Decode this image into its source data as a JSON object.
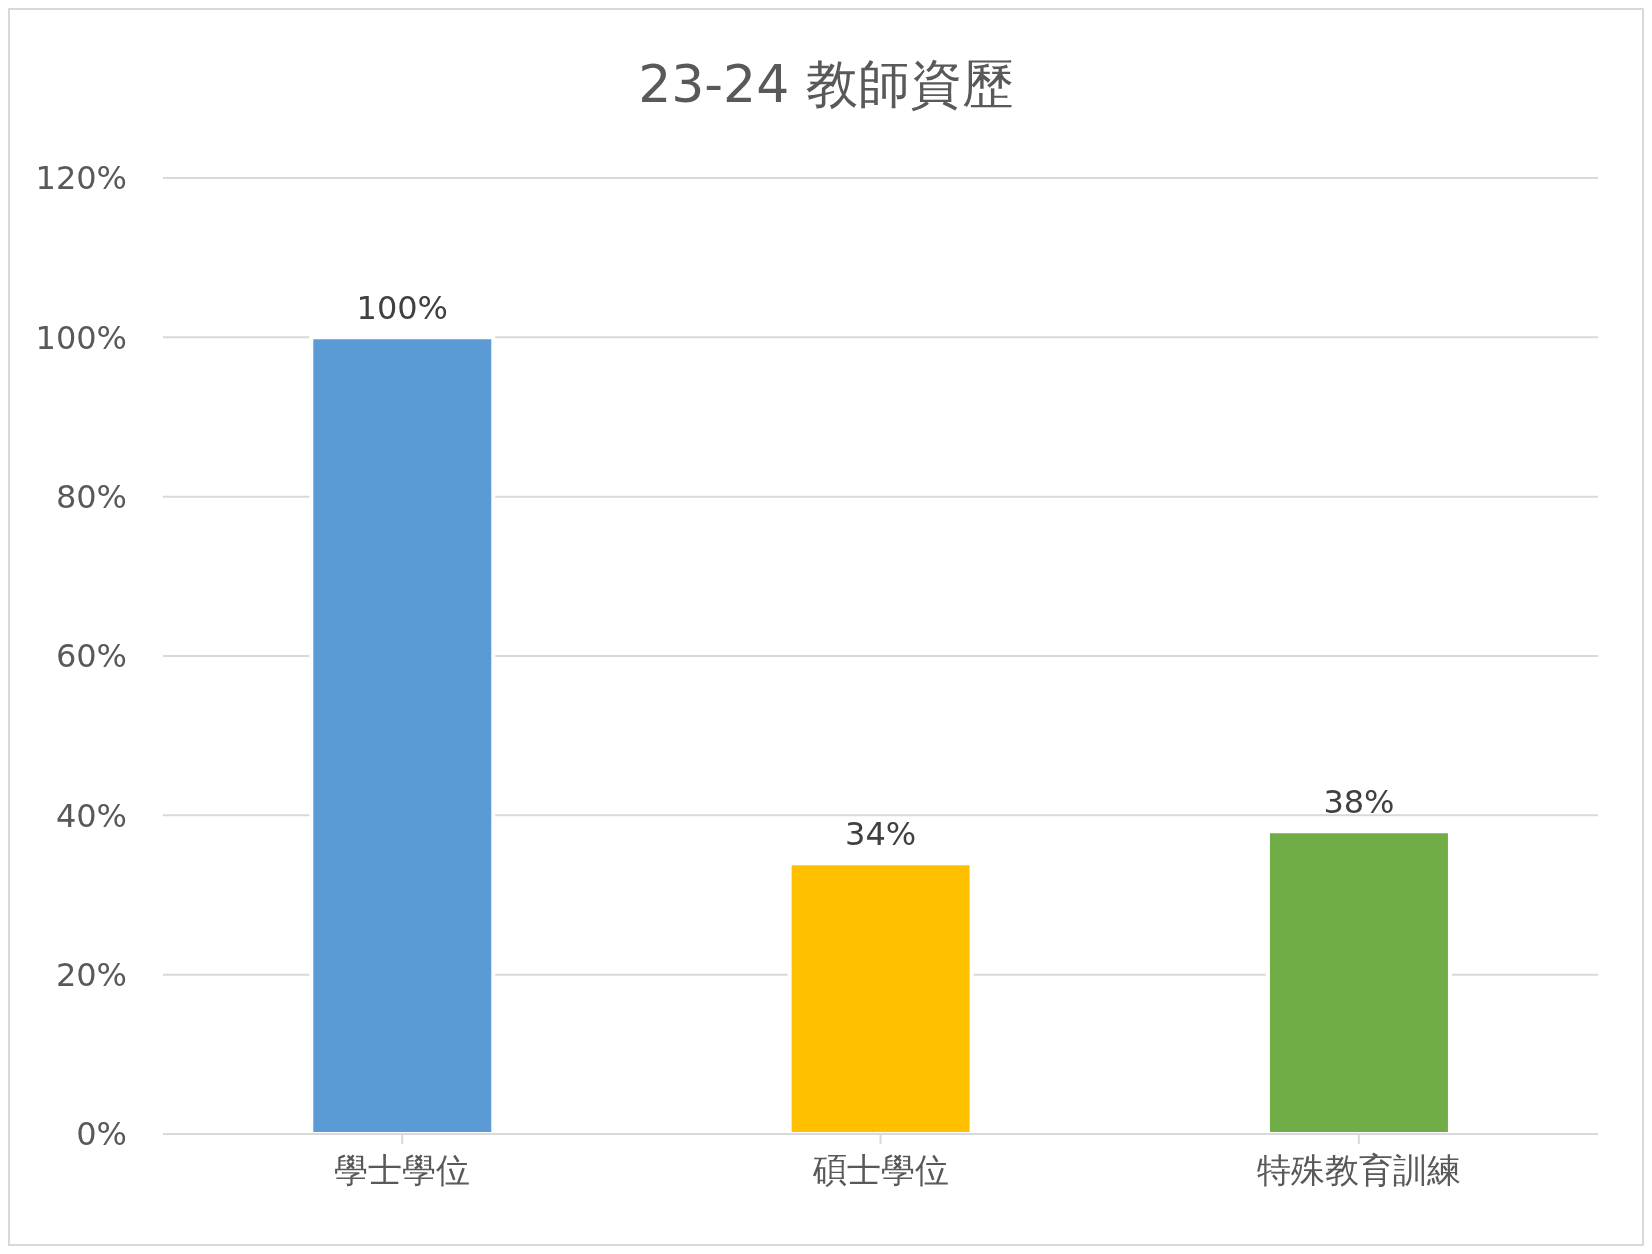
{
  "chart_data": {
    "type": "bar",
    "title": "23-24 教師資歷",
    "categories": [
      "學士學位",
      "碩士學位",
      "特殊教育訓練"
    ],
    "values": [
      100,
      34,
      38
    ],
    "colors": [
      "#5b9bd5",
      "#ffc000",
      "#70ad47"
    ],
    "value_labels": [
      "100%",
      "34%",
      "38%"
    ],
    "ylim": [
      0,
      120
    ],
    "yticks": [
      {
        "value": 0,
        "label": "0%"
      },
      {
        "value": 20,
        "label": "20%"
      },
      {
        "value": 40,
        "label": "40%"
      },
      {
        "value": 60,
        "label": "60%"
      },
      {
        "value": 80,
        "label": "80%"
      },
      {
        "value": 100,
        "label": "100%"
      },
      {
        "value": 120,
        "label": "120%"
      }
    ],
    "grid": "y",
    "legend": false
  }
}
